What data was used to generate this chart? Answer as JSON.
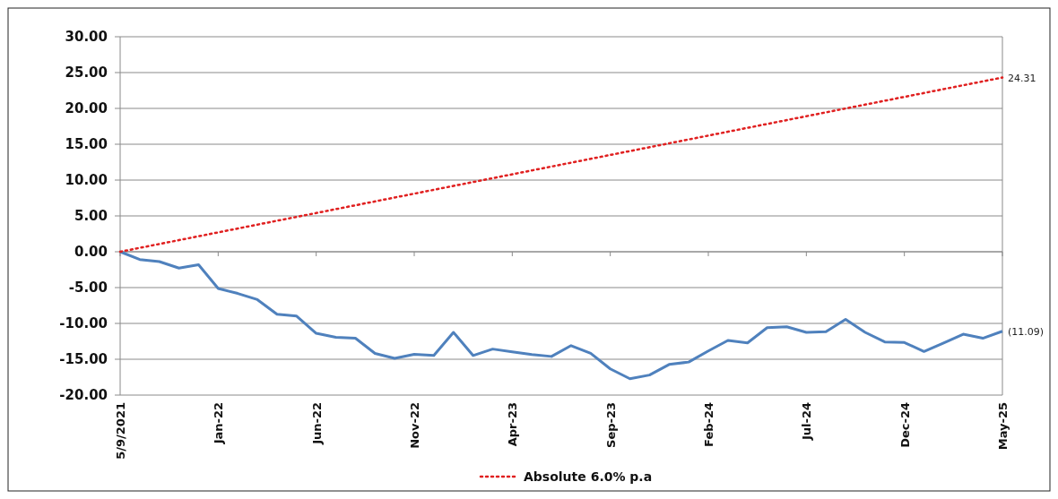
{
  "chart_data": {
    "type": "line",
    "categories": [
      "5/9/2021",
      null,
      null,
      null,
      null,
      "Jan-22",
      null,
      null,
      null,
      null,
      "Jun-22",
      null,
      null,
      null,
      null,
      "Nov-22",
      null,
      null,
      null,
      null,
      "Apr-23",
      null,
      null,
      null,
      null,
      "Sep-23",
      null,
      null,
      null,
      null,
      "Feb-24",
      null,
      null,
      null,
      null,
      "Jul-24",
      null,
      null,
      null,
      null,
      "Dec-24",
      null,
      null,
      null,
      null,
      "May-25"
    ],
    "series": [
      {
        "color": "#4f81bd",
        "line_style": "solid",
        "values": [
          0,
          -1.08,
          -1.38,
          -2.28,
          -1.81,
          -5.13,
          -5.82,
          -6.68,
          -8.71,
          -8.97,
          -11.38,
          -11.94,
          -12.07,
          -14.18,
          -14.87,
          -14.31,
          -14.48,
          -11.25,
          -14.48,
          -13.58,
          -13.97,
          -14.35,
          -14.61,
          -13.1,
          -14.18,
          -16.34,
          -17.72,
          -17.2,
          -15.73,
          -15.39,
          -13.84,
          -12.37,
          -12.72,
          -10.6,
          -10.47,
          -11.25,
          -11.16,
          -9.44,
          -11.25,
          -12.59,
          -12.67,
          -13.92,
          -12.72,
          -11.51,
          -12.07,
          -11.09
        ],
        "value_labels": [
          null,
          null,
          null,
          null,
          null,
          null,
          null,
          null,
          null,
          null,
          null,
          null,
          null,
          null,
          null,
          null,
          null,
          null,
          null,
          null,
          null,
          null,
          null,
          null,
          null,
          null,
          null,
          null,
          null,
          null,
          null,
          null,
          null,
          null,
          null,
          null,
          null,
          null,
          null,
          null,
          null,
          null,
          null,
          null,
          null,
          "(11.09)"
        ]
      },
      {
        "name": "Absolute 6.0% p.a",
        "color": "#e02020",
        "line_style": "dotted",
        "x": [
          "5/9/2021",
          "May-25"
        ],
        "values": [
          0,
          24.31
        ],
        "value_labels": [
          null,
          "24.31"
        ]
      }
    ],
    "ylim": [
      -20,
      30
    ],
    "yticks": [
      {
        "value": 30,
        "label": "30.00"
      },
      {
        "value": 25,
        "label": "25.00"
      },
      {
        "value": 20,
        "label": "20.00"
      },
      {
        "value": 15,
        "label": "15.00"
      },
      {
        "value": 10,
        "label": "10.00"
      },
      {
        "value": 5,
        "label": "5.00"
      },
      {
        "value": 0,
        "label": "0.00"
      },
      {
        "value": -5,
        "label": "-5.00"
      },
      {
        "value": -10,
        "label": "-10.00"
      },
      {
        "value": -15,
        "label": "-15.00"
      },
      {
        "value": -20,
        "label": "-20.00"
      }
    ],
    "grid": "y",
    "legend": "bottom"
  }
}
